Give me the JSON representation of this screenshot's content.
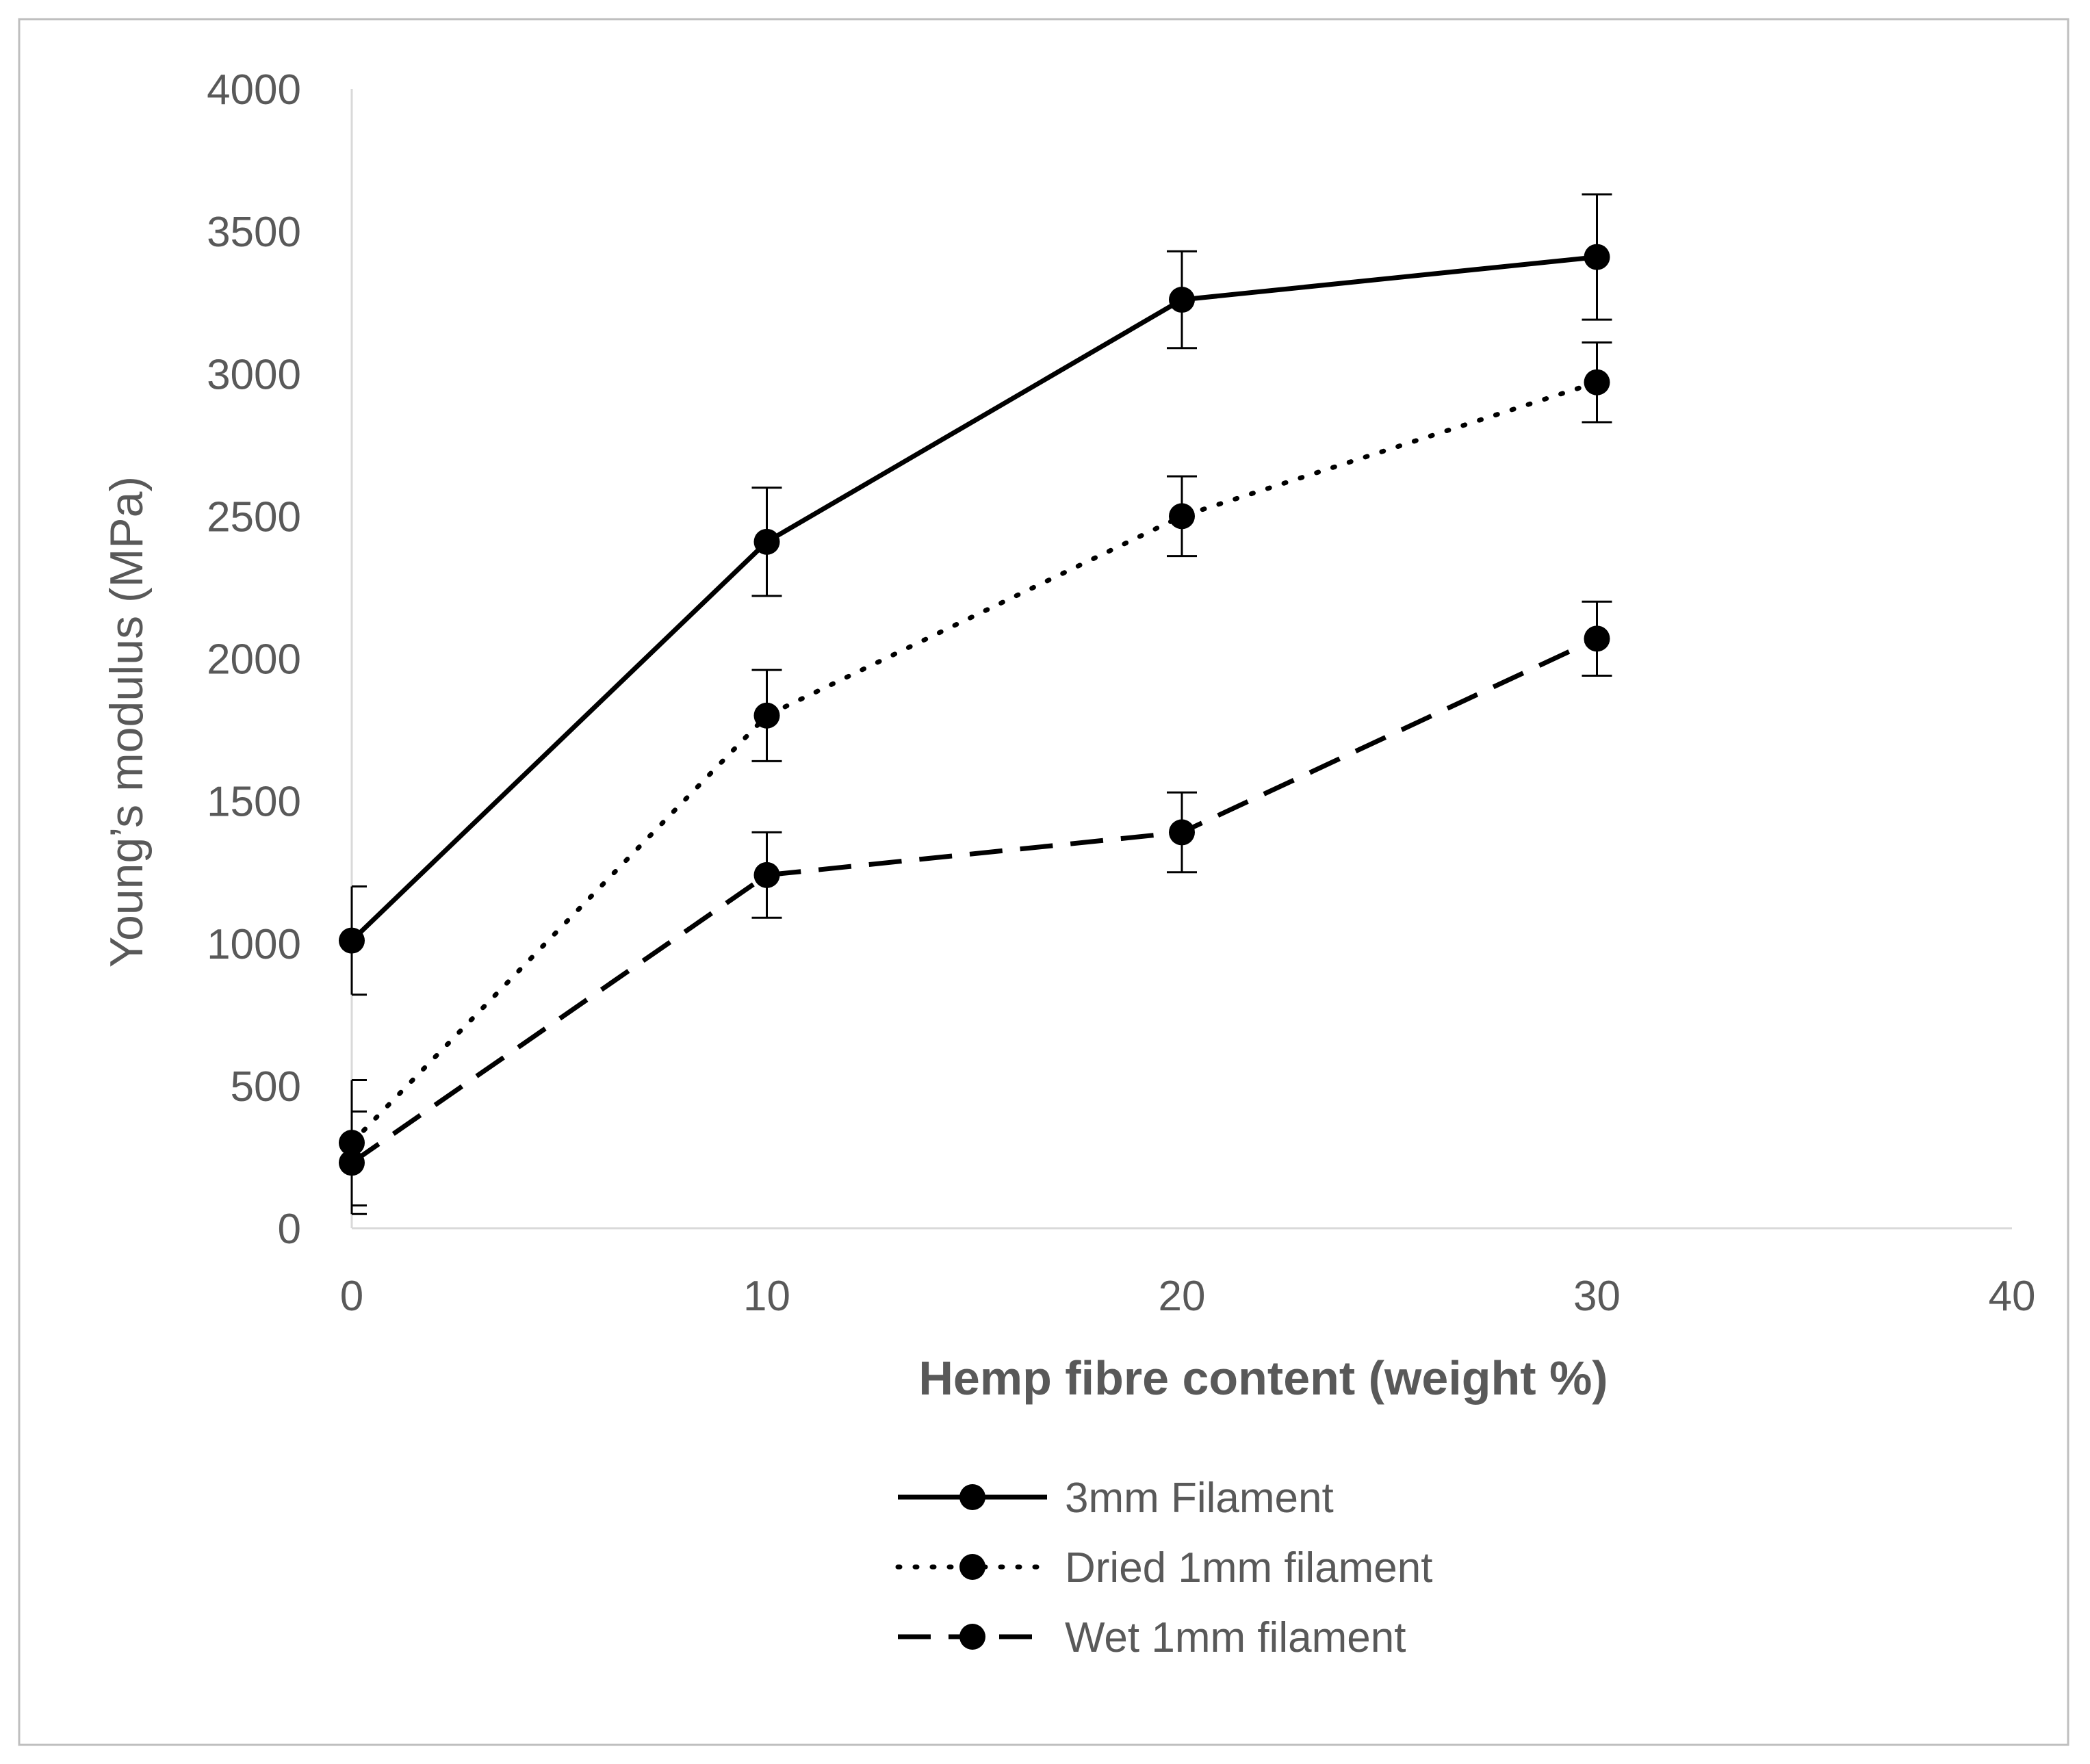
{
  "chart_data": {
    "type": "line",
    "xlabel": "Hemp fibre content (weight %)",
    "ylabel": "Young’s modulus (MPa)",
    "xlim": [
      0,
      40
    ],
    "ylim": [
      0,
      4000
    ],
    "x_ticks": [
      "0",
      "10",
      "20",
      "30",
      "40"
    ],
    "y_ticks": [
      "0",
      "500",
      "1000",
      "1500",
      "2000",
      "2500",
      "3000",
      "3500",
      "4000"
    ],
    "grid": false,
    "legend_position": "bottom-center",
    "x": [
      0,
      10,
      20,
      30
    ],
    "series": [
      {
        "name": "3mm Filament",
        "style": "solid",
        "values": [
          1010,
          2410,
          3260,
          3410
        ],
        "error": [
          190,
          190,
          170,
          220
        ]
      },
      {
        "name": "Dried 1mm filament",
        "style": "dotted",
        "values": [
          300,
          1800,
          2500,
          2970
        ],
        "error": [
          220,
          160,
          140,
          140
        ]
      },
      {
        "name": "Wet 1mm filament",
        "style": "dashed",
        "values": [
          230,
          1240,
          1390,
          2070
        ],
        "error": [
          180,
          150,
          140,
          130
        ]
      }
    ],
    "colors": {
      "line": "#000000",
      "axis": "#d9d9d9",
      "tick_text": "#595959",
      "title_text": "#595959",
      "border": "#bfbfbf"
    }
  }
}
